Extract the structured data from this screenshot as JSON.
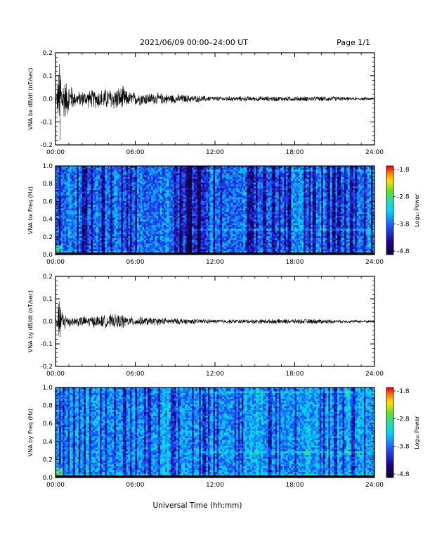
{
  "header": {
    "date_range": "2021/06/09  00:00–24:00 UT",
    "page": "Page 1/1"
  },
  "xlabel": "Universal Time (hh:mm)",
  "colors": {
    "trace": "#000000"
  },
  "chart_data": [
    {
      "type": "line",
      "ylabel": "VNA bx dB/dt (nT/sec)",
      "ylim": [
        -0.2,
        0.2
      ],
      "xlim": [
        0,
        24
      ],
      "y_ticks": [
        "0.2",
        "0.1",
        "0.0",
        "-0.1",
        "-0.2"
      ],
      "x_ticks": [
        "00:00",
        "06:00",
        "12:00",
        "18:00",
        "24:00"
      ],
      "series": [
        {
          "x": [
            0,
            0.3,
            0.35,
            0.4,
            1.2,
            1.5,
            5.1,
            5.4,
            12,
            18,
            21,
            24
          ],
          "y": [
            0.0,
            0.15,
            -0.18,
            0.1,
            0.05,
            0.03,
            0.05,
            0.03,
            0.01,
            0.01,
            0.01,
            0.0
          ]
        }
      ]
    },
    {
      "type": "heatmap",
      "ylabel": "VNA bx Freq (Hz)",
      "ylim": [
        0.0,
        1.0
      ],
      "xlim": [
        0,
        24
      ],
      "y_ticks": [
        "1.0",
        "0.8",
        "0.6",
        "0.4",
        "0.2",
        "0.0"
      ],
      "x_ticks": [
        "00:00",
        "06:00",
        "12:00",
        "18:00",
        "24:00"
      ],
      "colorbar": {
        "label": "Log₁₀ Power",
        "range": [
          -4.8,
          -1.8
        ],
        "ticks": [
          "-1.8",
          "-2.8",
          "-3.8",
          "-4.8"
        ]
      }
    },
    {
      "type": "line",
      "ylabel": "VNA by dB/dt (nT/sec)",
      "ylim": [
        -0.2,
        0.2
      ],
      "xlim": [
        0,
        24
      ],
      "y_ticks": [
        "0.2",
        "0.1",
        "0.0",
        "-0.1",
        "-0.2"
      ],
      "x_ticks": [
        "00:00",
        "06:00",
        "12:00",
        "18:00",
        "24:00"
      ],
      "series": [
        {
          "x": [
            0,
            0.3,
            0.35,
            0.4,
            1.2,
            5.1,
            5.4,
            12,
            18,
            20,
            24
          ],
          "y": [
            0.0,
            0.09,
            -0.07,
            0.05,
            0.02,
            0.03,
            0.02,
            0.008,
            0.01,
            0.01,
            0.0
          ]
        }
      ]
    },
    {
      "type": "heatmap",
      "ylabel": "VNA by Freq (Hz)",
      "ylim": [
        0.0,
        1.0
      ],
      "xlim": [
        0,
        24
      ],
      "y_ticks": [
        "1.0",
        "0.8",
        "0.6",
        "0.4",
        "0.2",
        "0.0"
      ],
      "x_ticks": [
        "00:00",
        "06:00",
        "12:00",
        "18:00",
        "24:00"
      ],
      "colorbar": {
        "label": "Log₁₀ Power",
        "range": [
          -4.8,
          -1.8
        ],
        "ticks": [
          "-1.8",
          "-2.8",
          "-3.8",
          "-4.8"
        ]
      }
    }
  ]
}
